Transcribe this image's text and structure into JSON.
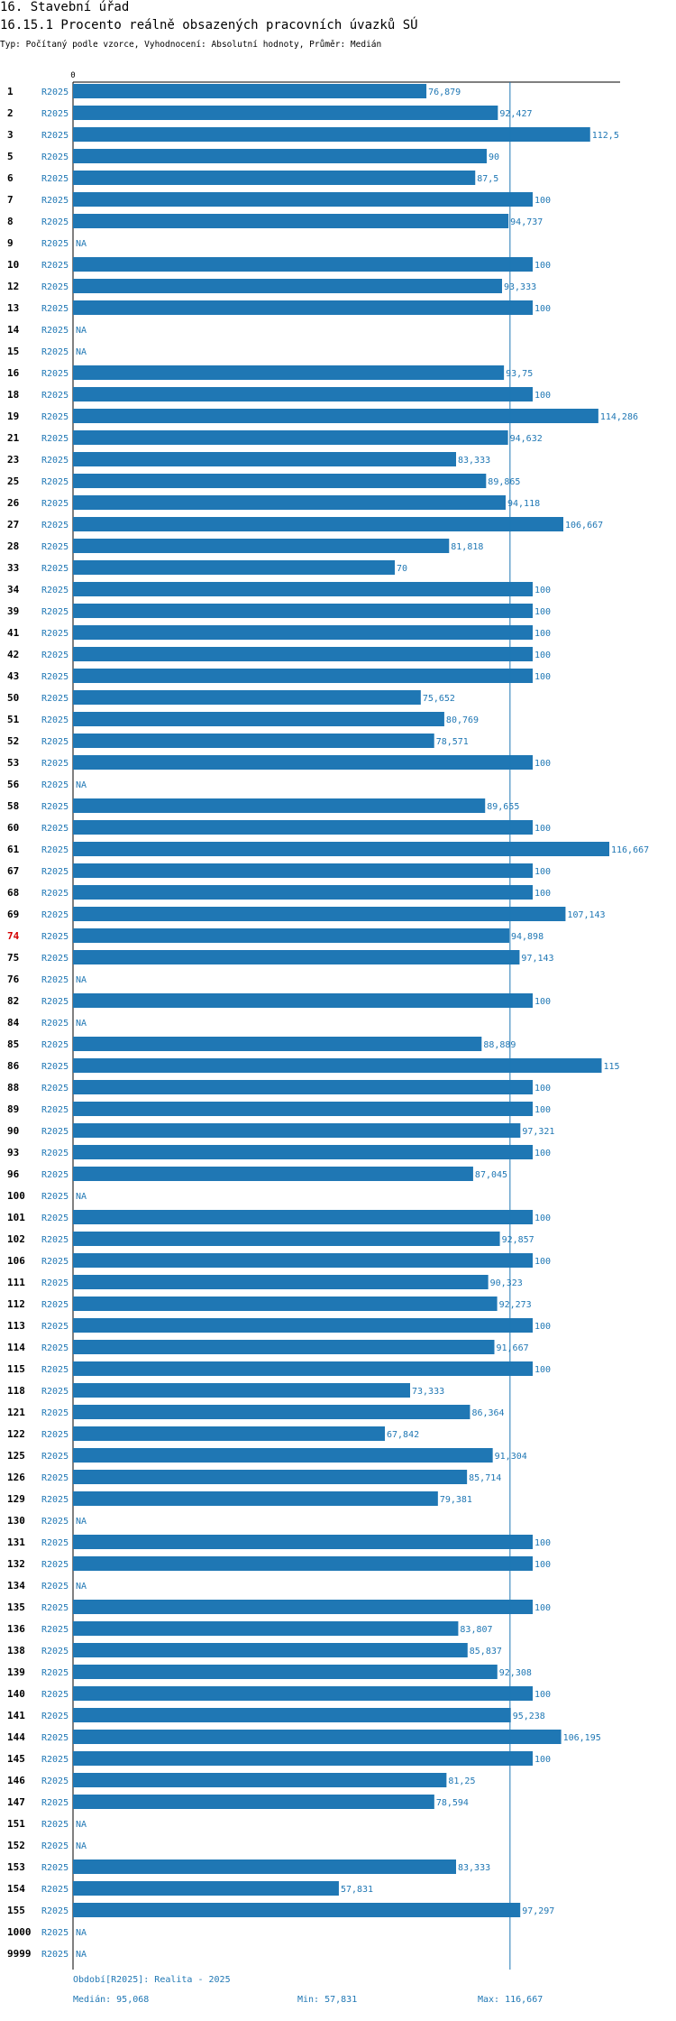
{
  "header": {
    "title": "16. Stavební úřad",
    "subtitle": "16.15.1 Procento reálně obsazených pracovních úvazků SÚ",
    "meta": "Typ: Počítaný podle vzorce, Vyhodnocení: Absolutní hodnoty, Průměr: Medián"
  },
  "colors": {
    "bar": "#1f77b4",
    "highlight": "#d40000",
    "text": "#000000"
  },
  "chart_data": {
    "type": "bar",
    "orientation": "horizontal",
    "series_name": "R2025",
    "xlim": [
      0,
      116.667
    ],
    "x_tick_labels": [
      "0"
    ],
    "highlight_category": "74",
    "median_line": 95.068,
    "categories": [
      "1",
      "2",
      "3",
      "5",
      "6",
      "7",
      "8",
      "9",
      "10",
      "12",
      "13",
      "14",
      "15",
      "16",
      "18",
      "19",
      "21",
      "23",
      "25",
      "26",
      "27",
      "28",
      "33",
      "34",
      "39",
      "41",
      "42",
      "43",
      "50",
      "51",
      "52",
      "53",
      "56",
      "58",
      "60",
      "61",
      "67",
      "68",
      "69",
      "74",
      "75",
      "76",
      "82",
      "84",
      "85",
      "86",
      "88",
      "89",
      "90",
      "93",
      "96",
      "100",
      "101",
      "102",
      "106",
      "111",
      "112",
      "113",
      "114",
      "115",
      "118",
      "121",
      "122",
      "125",
      "126",
      "129",
      "130",
      "131",
      "132",
      "134",
      "135",
      "136",
      "138",
      "139",
      "140",
      "141",
      "144",
      "145",
      "146",
      "147",
      "151",
      "152",
      "153",
      "154",
      "155",
      "1000",
      "9999"
    ],
    "values": [
      76.879,
      92.427,
      112.5,
      90,
      87.5,
      100,
      94.737,
      null,
      100,
      93.333,
      100,
      null,
      null,
      93.75,
      100,
      114.286,
      94.632,
      83.333,
      89.865,
      94.118,
      106.667,
      81.818,
      70,
      100,
      100,
      100,
      100,
      100,
      75.652,
      80.769,
      78.571,
      100,
      null,
      89.655,
      100,
      116.667,
      100,
      100,
      107.143,
      94.898,
      97.143,
      null,
      100,
      null,
      88.889,
      115,
      100,
      100,
      97.321,
      100,
      87.045,
      null,
      100,
      92.857,
      100,
      90.323,
      92.273,
      100,
      91.667,
      100,
      73.333,
      86.364,
      67.842,
      91.304,
      85.714,
      79.381,
      null,
      100,
      100,
      null,
      100,
      83.807,
      85.837,
      92.308,
      100,
      95.238,
      106.195,
      100,
      81.25,
      78.594,
      null,
      null,
      83.333,
      57.831,
      97.297,
      null,
      null
    ],
    "value_labels": [
      "76,879",
      "92,427",
      "112,5",
      "90",
      "87,5",
      "100",
      "94,737",
      "NA",
      "100",
      "93,333",
      "100",
      "NA",
      "NA",
      "93,75",
      "100",
      "114,286",
      "94,632",
      "83,333",
      "89,865",
      "94,118",
      "106,667",
      "81,818",
      "70",
      "100",
      "100",
      "100",
      "100",
      "100",
      "75,652",
      "80,769",
      "78,571",
      "100",
      "NA",
      "89,655",
      "100",
      "116,667",
      "100",
      "100",
      "107,143",
      "94,898",
      "97,143",
      "NA",
      "100",
      "NA",
      "88,889",
      "115",
      "100",
      "100",
      "97,321",
      "100",
      "87,045",
      "NA",
      "100",
      "92,857",
      "100",
      "90,323",
      "92,273",
      "100",
      "91,667",
      "100",
      "73,333",
      "86,364",
      "67,842",
      "91,304",
      "85,714",
      "79,381",
      "NA",
      "100",
      "100",
      "NA",
      "100",
      "83,807",
      "85,837",
      "92,308",
      "100",
      "95,238",
      "106,195",
      "100",
      "81,25",
      "78,594",
      "NA",
      "NA",
      "83,333",
      "57,831",
      "97,297",
      "NA",
      "NA"
    ]
  },
  "footer": {
    "period": "Období[R2025]: Realita - 2025",
    "median": "Medián: 95,068",
    "min": "Min: 57,831",
    "max": "Max: 116,667"
  }
}
